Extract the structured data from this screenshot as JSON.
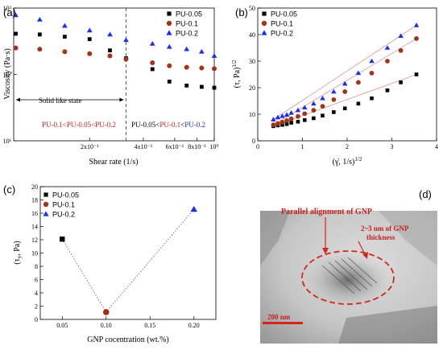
{
  "colors": {
    "s005": "#000000",
    "s01": "#a0341a",
    "s02": "#1c2ee6",
    "fit": "#cc6f6f",
    "ann_red": "#c81e1e",
    "ann_blue": "#2233cc"
  },
  "chart_data": [
    {
      "id": "a",
      "panel_label": "(a)",
      "type": "scatter",
      "log_x": true,
      "log_y": true,
      "xlabel": "Shear rate (1/s)",
      "ylabel": "Viscosity (Pa·s)",
      "xlim": [
        0.075,
        1.0
      ],
      "ylim": [
        10,
        1000
      ],
      "x_ticks": [
        {
          "v": 0.2,
          "label": "2x10⁻¹"
        },
        {
          "v": 0.4,
          "label": "4x10⁻¹"
        },
        {
          "v": 0.6,
          "label": "6x10⁻¹"
        },
        {
          "v": 0.8,
          "label": "8x10⁻¹"
        },
        {
          "v": 1.0,
          "label": "10⁰"
        }
      ],
      "y_ticks": [
        {
          "v": 10,
          "label": "10¹"
        },
        {
          "v": 100,
          "label": "10²"
        },
        {
          "v": 1000,
          "label": "10³"
        }
      ],
      "divider_x": 0.32,
      "legend": [
        "PU-0.05",
        "PU-0.1",
        "PU-0.2"
      ],
      "series": [
        {
          "name": "PU-0.05",
          "marker": "square",
          "x": [
            0.077,
            0.105,
            0.145,
            0.2,
            0.26,
            0.32,
            0.45,
            0.56,
            0.7,
            0.85,
            1.0
          ],
          "y": [
            410,
            400,
            370,
            340,
            230,
            175,
            120,
            78,
            68,
            65,
            63
          ]
        },
        {
          "name": "PU-0.1",
          "marker": "circle",
          "x": [
            0.077,
            0.105,
            0.145,
            0.2,
            0.26,
            0.32,
            0.45,
            0.56,
            0.7,
            0.85,
            1.0
          ],
          "y": [
            250,
            240,
            220,
            205,
            190,
            170,
            150,
            135,
            128,
            125,
            122
          ]
        },
        {
          "name": "PU-0.2",
          "marker": "triangle",
          "x": [
            0.077,
            0.105,
            0.145,
            0.2,
            0.26,
            0.32,
            0.45,
            0.56,
            0.7,
            0.85,
            1.0
          ],
          "y": [
            780,
            670,
            540,
            460,
            400,
            330,
            290,
            260,
            240,
            220,
            190
          ]
        }
      ],
      "annotations": {
        "solid": "Solid like state",
        "left_text": [
          {
            "t": "PU-0.1",
            "c": "ann_red"
          },
          {
            "t": "<",
            "c": "ann_red"
          },
          {
            "t": "PU-0.05",
            "c": "ann_red"
          },
          {
            "t": "<",
            "c": "ann_red"
          },
          {
            "t": "PU-0.2",
            "c": "ann_red"
          }
        ],
        "right_text": [
          {
            "t": "PU-0.05",
            "c": "s005"
          },
          {
            "t": "<",
            "c": "s005"
          },
          {
            "t": "PU-0.1",
            "c": "ann_red"
          },
          {
            "t": "<",
            "c": "s005"
          },
          {
            "t": "PU-0.2",
            "c": "ann_blue"
          }
        ]
      }
    },
    {
      "id": "b",
      "panel_label": "(b)",
      "type": "scatter",
      "xlabel": "(γ̇, 1/s)1/2",
      "ylabel": "(τ, Pa)1/2",
      "xlim": [
        0,
        4
      ],
      "ylim": [
        0,
        50
      ],
      "x_ticks": [
        0,
        1,
        2,
        3,
        4
      ],
      "y_ticks": [
        0,
        10,
        20,
        30,
        40,
        50
      ],
      "legend": [
        "PU-0.05",
        "PU-0.1",
        "PU-0.2"
      ],
      "series": [
        {
          "name": "PU-0.05",
          "marker": "square",
          "x": [
            0.35,
            0.45,
            0.55,
            0.65,
            0.75,
            0.9,
            1.05,
            1.25,
            1.45,
            1.7,
            1.95,
            2.25,
            2.55,
            2.9,
            3.2,
            3.55
          ],
          "y": [
            5.5,
            5.8,
            6.0,
            6.3,
            6.8,
            7.2,
            7.8,
            8.5,
            9.5,
            10.8,
            12.2,
            14.0,
            16.0,
            19.0,
            22.0,
            25.0
          ]
        },
        {
          "name": "PU-0.1",
          "marker": "circle",
          "x": [
            0.35,
            0.45,
            0.55,
            0.65,
            0.75,
            0.9,
            1.05,
            1.25,
            1.45,
            1.7,
            1.95,
            2.25,
            2.55,
            2.9,
            3.2,
            3.55
          ],
          "y": [
            6.0,
            6.5,
            7.0,
            7.6,
            8.3,
            9.2,
            10.2,
            11.5,
            13.0,
            15.5,
            18.5,
            22.0,
            25.5,
            30.0,
            34.0,
            38.5
          ]
        },
        {
          "name": "PU-0.2",
          "marker": "triangle",
          "x": [
            0.35,
            0.45,
            0.55,
            0.65,
            0.75,
            0.9,
            1.05,
            1.25,
            1.45,
            1.7,
            1.95,
            2.25,
            2.55,
            2.9,
            3.2,
            3.55
          ],
          "y": [
            8.0,
            8.8,
            9.3,
            9.8,
            10.5,
            11.5,
            12.5,
            14.0,
            16.0,
            18.5,
            21.5,
            25.5,
            30.0,
            35.0,
            39.5,
            43.5
          ]
        }
      ]
    },
    {
      "id": "c",
      "panel_label": "(c)",
      "type": "scatter",
      "xlabel": "GNP cocentration (wt.%)",
      "ylabel": "(τy, Pa)",
      "xlim": [
        0.025,
        0.225
      ],
      "ylim": [
        0,
        20
      ],
      "x_ticks": [
        {
          "v": 0.05,
          "label": "0.05"
        },
        {
          "v": 0.1,
          "label": "0.10"
        },
        {
          "v": 0.15,
          "label": "0.15"
        },
        {
          "v": 0.2,
          "label": "0.20"
        }
      ],
      "y_ticks": [
        0,
        2,
        4,
        6,
        8,
        10,
        12,
        14,
        16,
        18,
        20
      ],
      "legend": [
        "PU-0.05",
        "PU-0.1",
        "PU-0.2"
      ],
      "series": [
        {
          "name": "PU-0.05",
          "marker": "square",
          "x": [
            0.05
          ],
          "y": [
            12.1
          ]
        },
        {
          "name": "PU-0.1",
          "marker": "circle",
          "x": [
            0.1
          ],
          "y": [
            1.1
          ]
        },
        {
          "name": "PU-0.2",
          "marker": "triangle",
          "x": [
            0.2
          ],
          "y": [
            16.6
          ]
        }
      ]
    }
  ],
  "panel_d": {
    "label": "(d)",
    "annotation1": "Parallel alignment of GNP",
    "annotation2_line1": "2~3 nm of GNP",
    "annotation2_line2": "thickness",
    "scale_bar": "200 nm"
  }
}
